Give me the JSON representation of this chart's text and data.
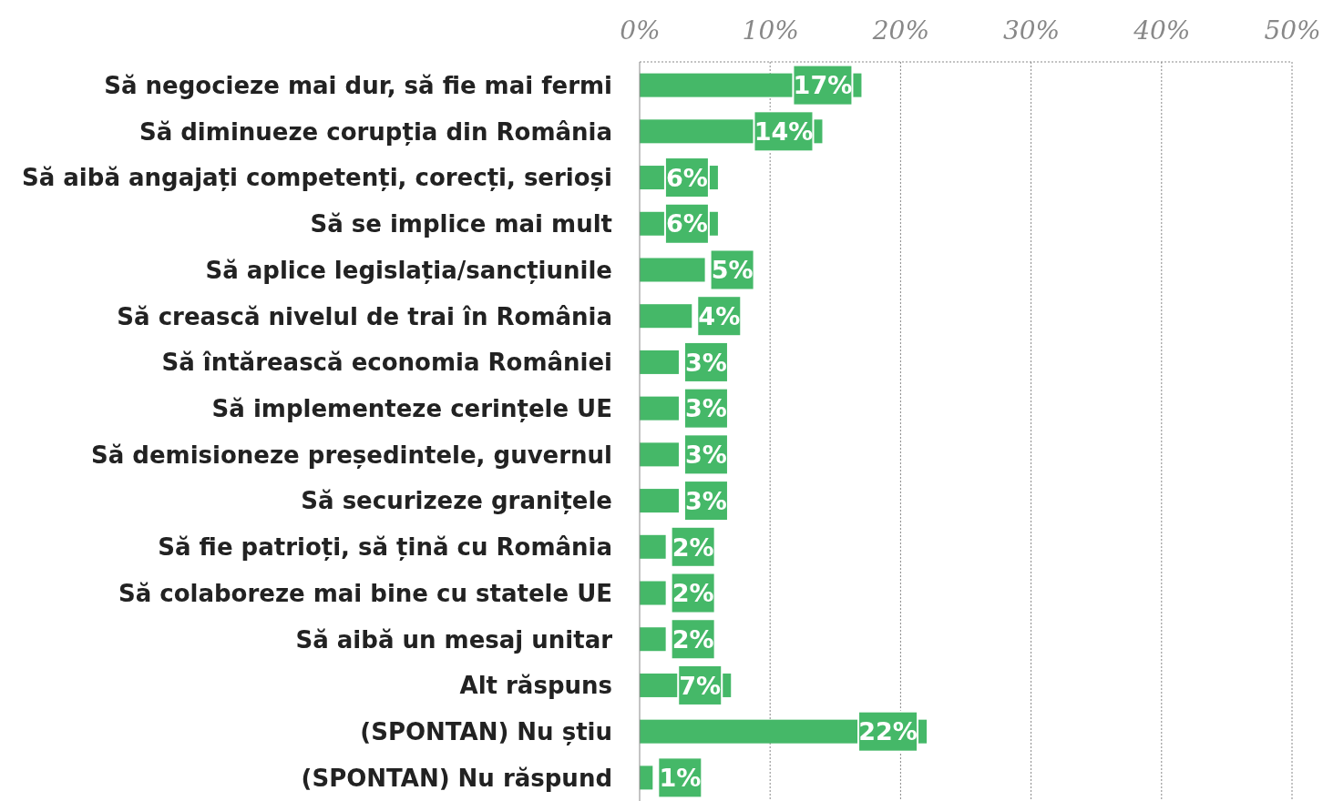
{
  "chart_data": {
    "type": "bar",
    "orientation": "horizontal",
    "categories": [
      "Să negocieze mai dur, să fie mai fermi",
      "Să diminueze corupția din România",
      "Să aibă angajați competenți, corecți, serioși",
      "Să se implice mai mult",
      "Să aplice legislația/sancțiunile",
      "Să crească nivelul de trai în România",
      "Să întărească economia României",
      "Să implementeze cerințele UE",
      "Să demisioneze președintele, guvernul",
      "Să securizeze granițele",
      "Să fie patrioți, să țină cu România",
      "Să colaboreze mai bine cu statele UE",
      "Să aibă un mesaj unitar",
      "Alt răspuns",
      "(SPONTAN) Nu știu",
      "(SPONTAN) Nu răspund"
    ],
    "values": [
      17,
      14,
      6,
      6,
      5,
      4,
      3,
      3,
      3,
      3,
      2,
      2,
      2,
      7,
      22,
      1
    ],
    "value_labels": [
      "17%",
      "14%",
      "6%",
      "6%",
      "5%",
      "4%",
      "3%",
      "3%",
      "3%",
      "3%",
      "2%",
      "2%",
      "2%",
      "7%",
      "22%",
      "1%"
    ],
    "color": "#45b868",
    "xlim": [
      0,
      50
    ],
    "xticks": [
      {
        "value": 0,
        "label": "0%"
      },
      {
        "value": 10,
        "label": "10%"
      },
      {
        "value": 20,
        "label": "20%"
      },
      {
        "value": 30,
        "label": "30%"
      },
      {
        "value": 40,
        "label": "40%"
      },
      {
        "value": 50,
        "label": "50%"
      }
    ],
    "grid": "x"
  }
}
